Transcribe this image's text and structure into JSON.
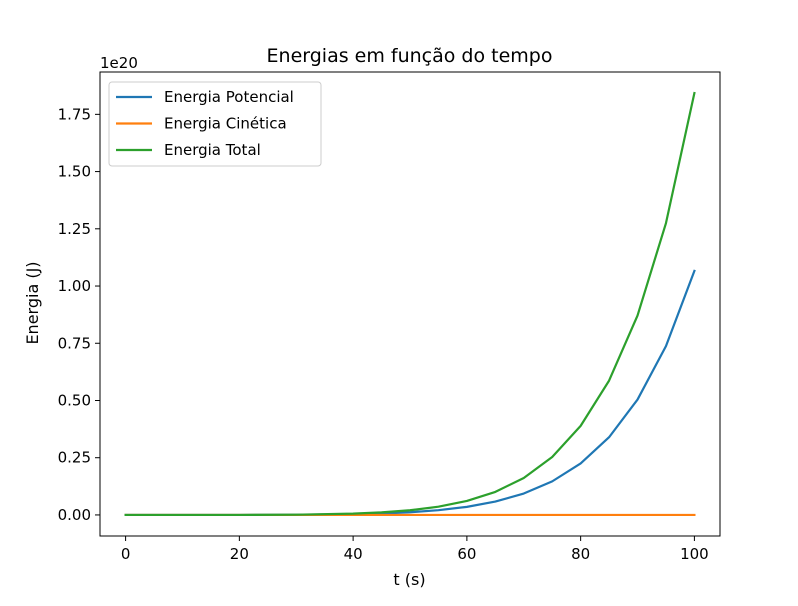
{
  "chart_data": {
    "type": "line",
    "title": "Energias em função do tempo",
    "xlabel": "t (s)",
    "ylabel": "Energia (J)",
    "offset_text": "1e20",
    "xlim": [
      -4.5,
      104.5
    ],
    "ylim": [
      -0.092,
      1.935
    ],
    "y_scale_multiplier": 1e+20,
    "x_ticks": [
      0,
      20,
      40,
      60,
      80,
      100
    ],
    "x_tick_labels": [
      "0",
      "20",
      "40",
      "60",
      "80",
      "100"
    ],
    "y_ticks": [
      0.0,
      0.25,
      0.5,
      0.75,
      1.0,
      1.25,
      1.5,
      1.75
    ],
    "y_tick_labels": [
      "0.00",
      "0.25",
      "0.50",
      "0.75",
      "1.00",
      "1.25",
      "1.50",
      "1.75"
    ],
    "grid": false,
    "legend_position": "upper left",
    "x": [
      0,
      10,
      20,
      30,
      40,
      45,
      50,
      55,
      60,
      65,
      70,
      75,
      80,
      85,
      90,
      95,
      100
    ],
    "series": [
      {
        "name": "Energia Potencial",
        "color": "#1f77b4",
        "values": [
          0.0,
          0.0,
          0.0001,
          0.0007,
          0.0033,
          0.0064,
          0.0118,
          0.0208,
          0.0353,
          0.0583,
          0.0935,
          0.1466,
          0.2251,
          0.3395,
          0.504,
          0.7376,
          1.0662
        ]
      },
      {
        "name": "Energia Cinética",
        "color": "#ff7f0e",
        "values": [
          0,
          0,
          0,
          0,
          0,
          0,
          0,
          0,
          0,
          0,
          0,
          0,
          0,
          0,
          0,
          0,
          0
        ]
      },
      {
        "name": "Energia Total",
        "color": "#2ca02c",
        "values": [
          0.0,
          0.0,
          0.0001,
          0.0012,
          0.0057,
          0.0111,
          0.0204,
          0.0359,
          0.061,
          0.1007,
          0.1615,
          0.2533,
          0.389,
          0.5868,
          0.871,
          1.2747,
          1.843
        ]
      }
    ]
  }
}
